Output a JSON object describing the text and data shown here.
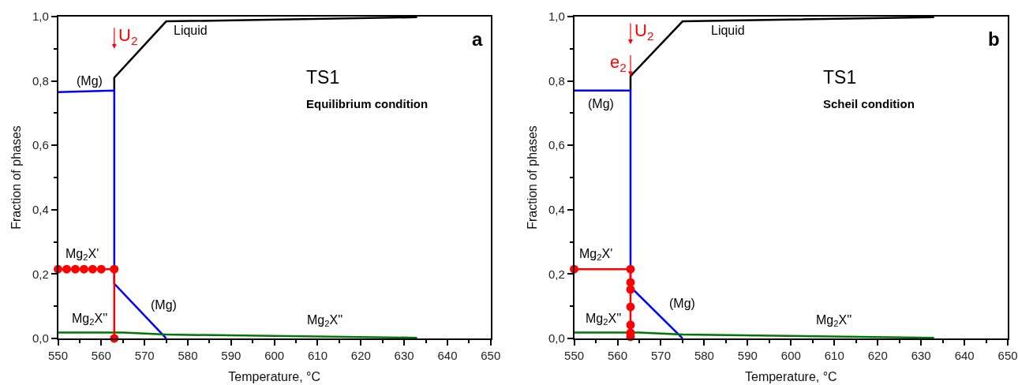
{
  "chart_data": [
    {
      "type": "line",
      "xlabel": "Temperature, °C",
      "ylabel": "Fraction of phases",
      "xlim": [
        550,
        650
      ],
      "xticks": [
        550,
        560,
        570,
        580,
        590,
        600,
        610,
        620,
        630,
        640,
        650,
        {
          "value": 555,
          "label": null
        },
        {
          "value": 565,
          "label": null
        },
        {
          "value": 575,
          "label": null
        },
        {
          "value": 585,
          "label": null
        },
        {
          "value": 595,
          "label": null
        },
        {
          "value": 605,
          "label": null
        },
        {
          "value": 615,
          "label": null
        },
        {
          "value": 625,
          "label": null
        },
        {
          "value": 635,
          "label": null
        },
        {
          "value": 645,
          "label": null
        }
      ],
      "ylim": [
        0,
        1
      ],
      "yticks": [
        {
          "value": 0,
          "label": "0,0"
        },
        {
          "value": 0.2,
          "label": "0,2"
        },
        {
          "value": 0.4,
          "label": "0,4"
        },
        {
          "value": 0.6,
          "label": "0,6"
        },
        {
          "value": 0.8,
          "label": "0,8"
        },
        {
          "value": 1,
          "label": "1,0"
        },
        {
          "value": 0.1,
          "label": null
        },
        {
          "value": 0.3,
          "label": null
        },
        {
          "value": 0.5,
          "label": null
        },
        {
          "value": 0.7,
          "label": null
        },
        {
          "value": 0.9,
          "label": null
        }
      ],
      "line_style": "solid",
      "series": [
        {
          "color": "#000000",
          "x": [
            563,
            563,
            575,
            633
          ],
          "values": [
            0.77,
            0.81,
            0.985,
            0.998
          ]
        },
        {
          "color": "#0000ff",
          "x": [
            550,
            563,
            563,
            575
          ],
          "values": [
            0.765,
            0.77,
            0.17,
            0
          ]
        },
        {
          "color": "#007700",
          "x": [
            550,
            565,
            575,
            633
          ],
          "values": [
            0.018,
            0.018,
            0.012,
            0.002
          ]
        },
        {
          "color": "#ff0000",
          "marker": "circle",
          "x": [
            550,
            552,
            554,
            556,
            558,
            560,
            563,
            563
          ],
          "values": [
            0.215,
            0.215,
            0.215,
            0.215,
            0.215,
            0.215,
            0.215,
            0
          ]
        }
      ],
      "annotations": [
        "a",
        "TS1",
        "Equilibrium condition",
        "U$_{2}$",
        "Liquid",
        "(Mg)",
        "(Mg)",
        "Mg$_{2}$X'",
        "Mg$_{2}$X''",
        "Mg$_{2}$X''"
      ]
    },
    {
      "type": "line",
      "xlabel": "Temperature, °C",
      "ylabel": "Fraction of phases",
      "xlim": [
        550,
        650
      ],
      "xticks": [
        550,
        560,
        570,
        580,
        590,
        600,
        610,
        620,
        630,
        640,
        650,
        {
          "value": 555,
          "label": null
        },
        {
          "value": 565,
          "label": null
        },
        {
          "value": 575,
          "label": null
        },
        {
          "value": 585,
          "label": null
        },
        {
          "value": 595,
          "label": null
        },
        {
          "value": 605,
          "label": null
        },
        {
          "value": 615,
          "label": null
        },
        {
          "value": 625,
          "label": null
        },
        {
          "value": 635,
          "label": null
        },
        {
          "value": 645,
          "label": null
        }
      ],
      "ylim": [
        0,
        1
      ],
      "yticks": [
        {
          "value": 0,
          "label": "0,0"
        },
        {
          "value": 0.2,
          "label": "0,2"
        },
        {
          "value": 0.4,
          "label": "0,4"
        },
        {
          "value": 0.6,
          "label": "0,6"
        },
        {
          "value": 0.8,
          "label": "0,8"
        },
        {
          "value": 1,
          "label": "1,0"
        },
        {
          "value": 0.1,
          "label": null
        },
        {
          "value": 0.3,
          "label": null
        },
        {
          "value": 0.5,
          "label": null
        },
        {
          "value": 0.7,
          "label": null
        },
        {
          "value": 0.9,
          "label": null
        }
      ],
      "line_style": "solid",
      "series": [
        {
          "color": "#000000",
          "x": [
            563,
            563,
            575,
            633
          ],
          "values": [
            0.77,
            0.815,
            0.985,
            0.998
          ]
        },
        {
          "color": "#0000ff",
          "x": [
            550,
            563,
            563,
            575
          ],
          "values": [
            0.77,
            0.77,
            0.16,
            0
          ]
        },
        {
          "color": "#007700",
          "x": [
            550,
            565,
            575,
            633
          ],
          "values": [
            0.018,
            0.018,
            0.012,
            0.002
          ]
        },
        {
          "color": "#ff0000",
          "marker": "circle",
          "x": [
            550,
            563,
            563,
            563,
            563,
            563,
            563,
            563
          ],
          "values": [
            0.215,
            0.215,
            0.174,
            0.152,
            0.098,
            0.042,
            0.017,
            0.005
          ]
        }
      ],
      "annotations": [
        "b",
        "TS1",
        "Scheil condition",
        "U$_{2}$",
        {
          "text": "e$_{2}$",
          "x": 563,
          "y": 0.815
        },
        "Liquid",
        "(Mg)",
        "(Mg)",
        "Mg$_{2}$X'",
        "Mg$_{2}$X''",
        "Mg$_{2}$X''"
      ]
    }
  ]
}
